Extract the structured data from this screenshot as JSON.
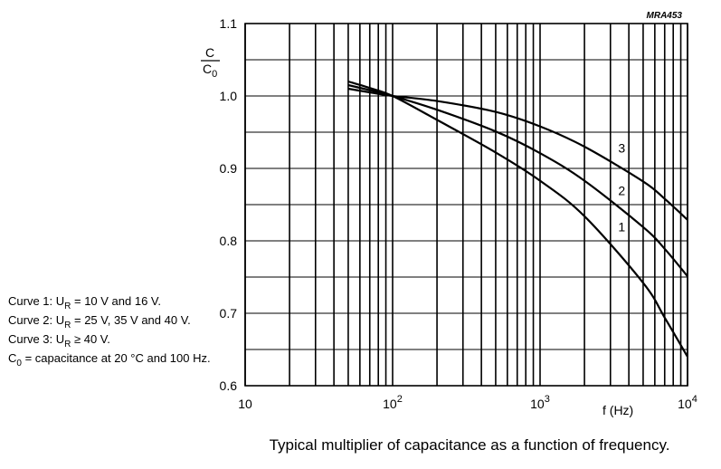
{
  "chart_data": {
    "type": "line",
    "reference_code": "MRA453",
    "caption": "Typical multiplier of capacitance as a function of frequency.",
    "x_axis": {
      "scale": "log",
      "range": [
        10,
        10000
      ],
      "unit_label": "f (Hz)",
      "tick_labels": [
        {
          "value": 10,
          "base": "10",
          "exp": ""
        },
        {
          "value": 100,
          "base": "10",
          "exp": "2"
        },
        {
          "value": 1000,
          "base": "10",
          "exp": "3"
        },
        {
          "value": 10000,
          "base": "10",
          "exp": "4"
        }
      ]
    },
    "y_axis": {
      "scale": "linear",
      "range": [
        0.6,
        1.1
      ],
      "label_numerator": "C",
      "label_denominator": "C",
      "label_denominator_sub": "0",
      "tick_labels": [
        "1.1",
        "1.0",
        "0.9",
        "0.8",
        "0.7",
        "0.6"
      ],
      "tick_values": [
        1.1,
        1.0,
        0.9,
        0.8,
        0.7,
        0.6
      ]
    },
    "grid": true,
    "series": [
      {
        "name": "1",
        "x": [
          50,
          70,
          100,
          200,
          500,
          1000,
          2000,
          5000,
          7000,
          10000
        ],
        "y": [
          1.02,
          1.011,
          1.0,
          0.967,
          0.922,
          0.883,
          0.834,
          0.742,
          0.694,
          0.64
        ]
      },
      {
        "name": "2",
        "x": [
          50,
          70,
          100,
          200,
          500,
          1000,
          2000,
          5000,
          7000,
          10000
        ],
        "y": [
          1.015,
          1.008,
          1.0,
          0.981,
          0.951,
          0.921,
          0.883,
          0.819,
          0.789,
          0.751
        ]
      },
      {
        "name": "3",
        "x": [
          50,
          70,
          100,
          200,
          500,
          1000,
          2000,
          5000,
          7000,
          10000
        ],
        "y": [
          1.01,
          1.005,
          1.0,
          0.993,
          0.978,
          0.958,
          0.93,
          0.882,
          0.858,
          0.829
        ]
      }
    ],
    "curve_label_positions": [
      {
        "name": "1",
        "x": 3200,
        "y": 0.813
      },
      {
        "name": "2",
        "x": 3200,
        "y": 0.863
      },
      {
        "name": "3",
        "x": 3200,
        "y": 0.922
      }
    ],
    "notes": [
      {
        "prefix": "Curve 1: U",
        "sub": "R",
        "rest": " = 10 V and 16 V."
      },
      {
        "prefix": "Curve 2: U",
        "sub": "R",
        "rest": " = 25 V, 35 V and 40 V."
      },
      {
        "prefix": "Curve 3: U",
        "sub": "R",
        "rest": " ≥ 40 V."
      },
      {
        "prefix": "C",
        "sub": "0",
        "rest": " = capacitance at 20 °C and 100 Hz."
      }
    ]
  }
}
